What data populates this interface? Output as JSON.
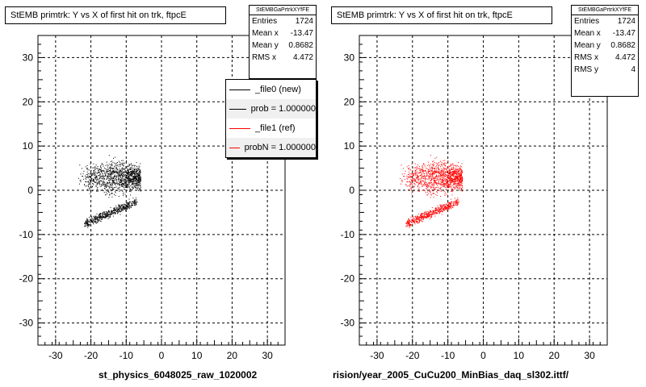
{
  "panels": [
    {
      "title": "StEMB primtrk: Y vs X of first hit on trk, ftpcE",
      "stats_title": "StEMBGaPrtrkXYfFE",
      "stats": [
        {
          "label": "Entries",
          "value": "1724"
        },
        {
          "label": "Mean x",
          "value": "-13.47"
        },
        {
          "label": "Mean y",
          "value": "0.8682"
        },
        {
          "label": "RMS x",
          "value": "4.472"
        }
      ],
      "legend": [
        {
          "label": "_file0 (new)",
          "color": "#000000"
        },
        {
          "label": "prob = 1.000000",
          "color": "#000000"
        },
        {
          "label": "_file1 (ref)",
          "color": "#ff0000"
        },
        {
          "label": "probN = 1.000000",
          "color": "#ff0000"
        }
      ],
      "footer": "st_physics_6048025_raw_1020002",
      "color": "#000000"
    },
    {
      "title": "StEMB primtrk: Y vs X of first hit on trk, ftpcE",
      "stats_title": "StEMBGaPrtrkXYfFE",
      "stats": [
        {
          "label": "Entries",
          "value": "1724"
        },
        {
          "label": "Mean x",
          "value": "-13.47"
        },
        {
          "label": "Mean y",
          "value": "0.8682"
        },
        {
          "label": "RMS x",
          "value": "4.472"
        },
        {
          "label": "RMS y",
          "value": "4"
        }
      ],
      "footer": "rision/year_2005_CuCu200_MinBias_daq_sl302.ittf/",
      "color": "#ff0000"
    }
  ],
  "chart_data": [
    {
      "type": "scatter",
      "title": "StEMB primtrk: Y vs X of first hit on trk, ftpcE",
      "xlim": [
        -35,
        35
      ],
      "ylim": [
        -35,
        35
      ],
      "x_ticks": [
        -30,
        -20,
        -10,
        0,
        10,
        20,
        30
      ],
      "y_ticks": [
        -30,
        -20,
        -10,
        0,
        10,
        20,
        30
      ],
      "grid": true,
      "entries": 1724,
      "clusters": [
        {
          "shape": "upper-wedge",
          "x_range": [
            -24,
            -6
          ],
          "y_range": [
            -2,
            9
          ],
          "count": 1200
        },
        {
          "shape": "lower-arm",
          "x_range": [
            -22,
            -7
          ],
          "y_range": [
            -10,
            -1
          ],
          "count": 524
        }
      ]
    },
    {
      "type": "scatter",
      "title": "StEMB primtrk: Y vs X of first hit on trk, ftpcE",
      "xlim": [
        -35,
        35
      ],
      "ylim": [
        -35,
        35
      ],
      "x_ticks": [
        -30,
        -20,
        -10,
        0,
        10,
        20,
        30
      ],
      "y_ticks": [
        -30,
        -20,
        -10,
        0,
        10,
        20,
        30
      ],
      "grid": true,
      "entries": 1724,
      "clusters": [
        {
          "shape": "upper-wedge",
          "x_range": [
            -24,
            -6
          ],
          "y_range": [
            -2,
            9
          ],
          "count": 1200
        },
        {
          "shape": "lower-arm",
          "x_range": [
            -22,
            -7
          ],
          "y_range": [
            -10,
            -1
          ],
          "count": 524
        }
      ]
    }
  ]
}
